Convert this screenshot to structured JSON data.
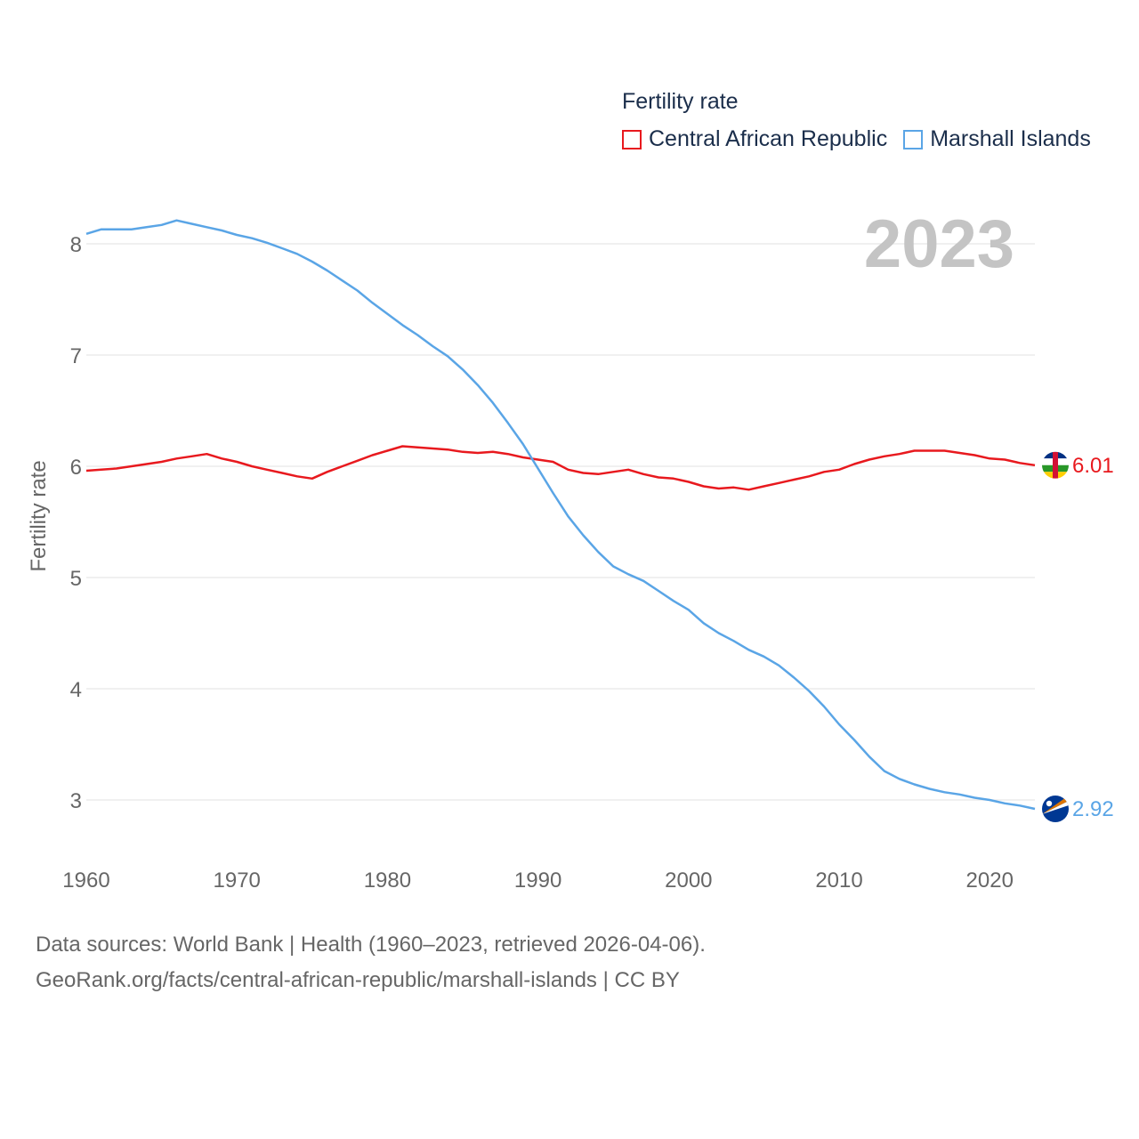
{
  "legend": {
    "title": "Fertility rate",
    "items": [
      {
        "label": "Central African Republic",
        "color": "#e8191e"
      },
      {
        "label": "Marshall Islands",
        "color": "#5aa5e6"
      }
    ]
  },
  "source": {
    "line1": "Data sources: World Bank | Health (1960–2023, retrieved 2026-04-06).",
    "line2": "GeoRank.org/facts/central-african-republic/marshall-islands | CC BY"
  },
  "chart_data": {
    "type": "line",
    "title": "Fertility rate",
    "year_label": "2023",
    "ylabel": "Fertility rate",
    "xlabel": "",
    "xlim": [
      1960,
      2023
    ],
    "ylim": [
      2.55,
      8.3
    ],
    "x_ticks": [
      1960,
      1970,
      1980,
      1990,
      2000,
      2010,
      2020
    ],
    "y_ticks": [
      3,
      4,
      5,
      6,
      7,
      8
    ],
    "grid": true,
    "x": [
      1960,
      1961,
      1962,
      1963,
      1964,
      1965,
      1966,
      1967,
      1968,
      1969,
      1970,
      1971,
      1972,
      1973,
      1974,
      1975,
      1976,
      1977,
      1978,
      1979,
      1980,
      1981,
      1982,
      1983,
      1984,
      1985,
      1986,
      1987,
      1988,
      1989,
      1990,
      1991,
      1992,
      1993,
      1994,
      1995,
      1996,
      1997,
      1998,
      1999,
      2000,
      2001,
      2002,
      2003,
      2004,
      2005,
      2006,
      2007,
      2008,
      2009,
      2010,
      2011,
      2012,
      2013,
      2014,
      2015,
      2016,
      2017,
      2018,
      2019,
      2020,
      2021,
      2022,
      2023
    ],
    "series": [
      {
        "name": "Central African Republic",
        "color": "#e8191e",
        "end_label": "6.01",
        "values": [
          5.96,
          5.97,
          5.98,
          6.0,
          6.02,
          6.04,
          6.07,
          6.09,
          6.11,
          6.07,
          6.04,
          6.0,
          5.97,
          5.94,
          5.91,
          5.89,
          5.95,
          6.0,
          6.05,
          6.1,
          6.14,
          6.18,
          6.17,
          6.16,
          6.15,
          6.13,
          6.12,
          6.13,
          6.11,
          6.08,
          6.06,
          6.04,
          5.97,
          5.94,
          5.93,
          5.95,
          5.97,
          5.93,
          5.9,
          5.89,
          5.86,
          5.82,
          5.8,
          5.81,
          5.79,
          5.82,
          5.85,
          5.88,
          5.91,
          5.95,
          5.97,
          6.02,
          6.06,
          6.09,
          6.11,
          6.14,
          6.14,
          6.14,
          6.12,
          6.1,
          6.07,
          6.06,
          6.03,
          6.01
        ]
      },
      {
        "name": "Marshall Islands",
        "color": "#5aa5e6",
        "end_label": "2.92",
        "values": [
          8.09,
          8.13,
          8.13,
          8.13,
          8.15,
          8.17,
          8.21,
          8.18,
          8.15,
          8.12,
          8.08,
          8.05,
          8.01,
          7.96,
          7.91,
          7.84,
          7.76,
          7.67,
          7.58,
          7.47,
          7.37,
          7.27,
          7.18,
          7.08,
          6.99,
          6.87,
          6.73,
          6.57,
          6.39,
          6.2,
          5.98,
          5.76,
          5.55,
          5.38,
          5.23,
          5.1,
          5.03,
          4.97,
          4.88,
          4.79,
          4.71,
          4.59,
          4.5,
          4.43,
          4.35,
          4.29,
          4.21,
          4.1,
          3.98,
          3.84,
          3.68,
          3.54,
          3.39,
          3.26,
          3.19,
          3.14,
          3.1,
          3.07,
          3.05,
          3.02,
          3.0,
          2.97,
          2.95,
          2.92
        ]
      }
    ]
  }
}
